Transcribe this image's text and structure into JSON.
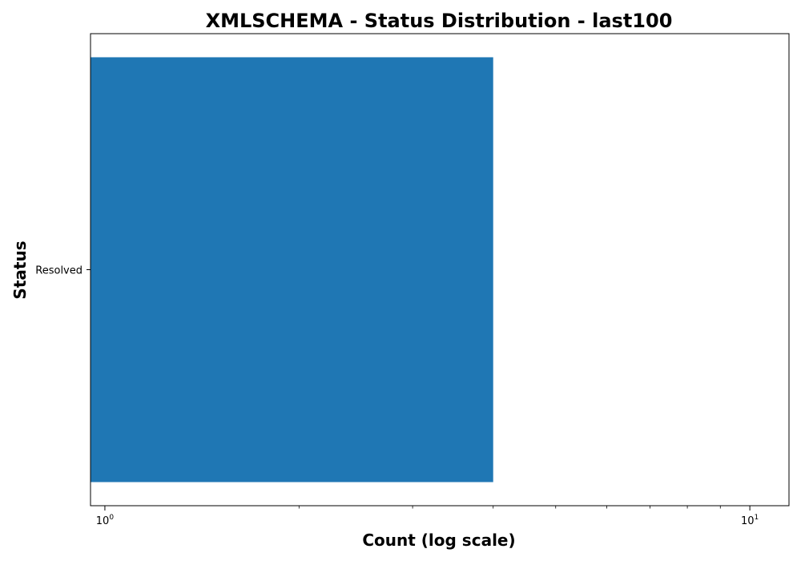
{
  "chart_data": {
    "type": "bar",
    "orientation": "horizontal",
    "title": "XMLSCHEMA - Status Distribution - last100",
    "xlabel": "Count (log scale)",
    "ylabel": "Status",
    "xscale": "log",
    "xlim": [
      0.95,
      11.5
    ],
    "categories": [
      "Resolved"
    ],
    "values": [
      4
    ],
    "bar_color": "#1f77b4",
    "x_major_ticks": [
      {
        "value": 1,
        "base": "10",
        "exp": "0"
      },
      {
        "value": 10,
        "base": "10",
        "exp": "1"
      }
    ],
    "x_minor_ticks": [
      2,
      3,
      4,
      5,
      6,
      7,
      8,
      9
    ],
    "grid": false,
    "legend": "none"
  }
}
